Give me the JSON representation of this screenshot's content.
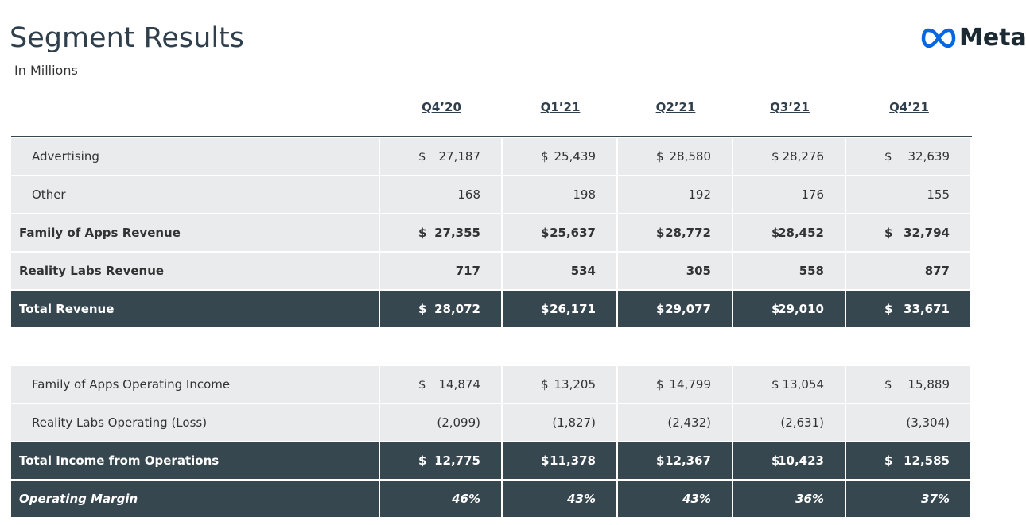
{
  "header": {
    "title": "Segment Results",
    "subtitle": "In Millions",
    "brand": "Meta"
  },
  "table": {
    "columns": [
      "Q4’20",
      "Q1’21",
      "Q2’21",
      "Q3’21",
      "Q4’21"
    ],
    "rows": [
      {
        "label": "Advertising",
        "cells": [
          {
            "sign": "$",
            "amount": "27,187"
          },
          {
            "sign": "$",
            "amount": "25,439"
          },
          {
            "sign": "$",
            "amount": "28,580"
          },
          {
            "sign": "$",
            "amount": "28,276"
          },
          {
            "sign": "$",
            "amount": "32,639"
          }
        ]
      },
      {
        "label": "Other",
        "cells": [
          "168",
          "198",
          "192",
          "176",
          "155"
        ]
      },
      {
        "label": "Family of Apps Revenue",
        "cells": [
          {
            "sign": "$",
            "amount": "27,355"
          },
          {
            "sign": "$",
            "amount": "25,637"
          },
          {
            "sign": "$",
            "amount": "28,772"
          },
          {
            "sign": "$",
            "amount": "28,452"
          },
          {
            "sign": "$",
            "amount": "32,794"
          }
        ]
      },
      {
        "label": "Reality Labs Revenue",
        "cells": [
          "717",
          "534",
          "305",
          "558",
          "877"
        ]
      },
      {
        "label": "Total Revenue",
        "cells": [
          {
            "sign": "$",
            "amount": "28,072"
          },
          {
            "sign": "$",
            "amount": "26,171"
          },
          {
            "sign": "$",
            "amount": "29,077"
          },
          {
            "sign": "$",
            "amount": "29,010"
          },
          {
            "sign": "$",
            "amount": "33,671"
          }
        ]
      },
      {
        "label": "Family of Apps Operating Income",
        "cells": [
          {
            "sign": "$",
            "amount": "14,874"
          },
          {
            "sign": "$",
            "amount": "13,205"
          },
          {
            "sign": "$",
            "amount": "14,799"
          },
          {
            "sign": "$",
            "amount": "13,054"
          },
          {
            "sign": "$",
            "amount": "15,889"
          }
        ]
      },
      {
        "label": "Reality Labs Operating (Loss)",
        "cells": [
          "(2,099)",
          "(1,827)",
          "(2,432)",
          "(2,631)",
          "(3,304)"
        ]
      },
      {
        "label": "Total Income from Operations",
        "cells": [
          {
            "sign": "$",
            "amount": "12,775"
          },
          {
            "sign": "$",
            "amount": "11,378"
          },
          {
            "sign": "$",
            "amount": "12,367"
          },
          {
            "sign": "$",
            "amount": "10,423"
          },
          {
            "sign": "$",
            "amount": "12,585"
          }
        ]
      },
      {
        "label": "Operating Margin",
        "cells": [
          "46%",
          "43%",
          "43%",
          "36%",
          "37%"
        ]
      }
    ]
  }
}
